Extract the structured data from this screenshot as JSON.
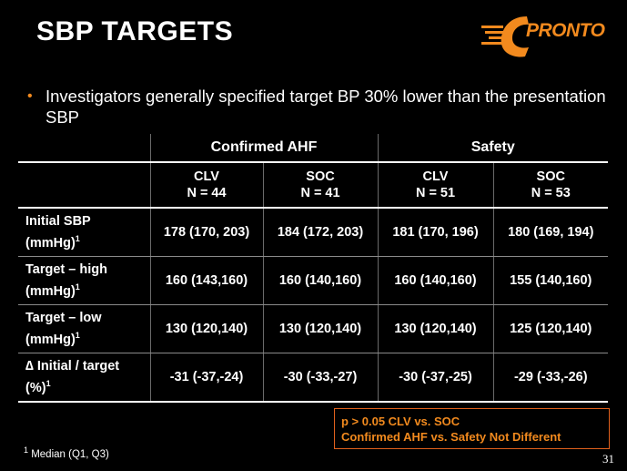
{
  "slide": {
    "title": "SBP TARGETS",
    "logo_text": "PRONTO",
    "bullet": "Investigators generally specified target BP 30% lower than the presentation SBP",
    "page_number": "31",
    "colors": {
      "accent": "#f28a1e",
      "box_border": "#e0601c",
      "background": "#000000"
    },
    "icons": {
      "bullet": "bullet-dot-icon",
      "logo": "pronto-logo-icon"
    }
  },
  "table": {
    "group_headers": [
      "Confirmed AHF",
      "Safety"
    ],
    "columns": [
      {
        "name": "CLV",
        "n": "N = 44"
      },
      {
        "name": "SOC",
        "n": "N = 41"
      },
      {
        "name": "CLV",
        "n": "N = 51"
      },
      {
        "name": "SOC",
        "n": "N = 53"
      }
    ],
    "rows": [
      {
        "label_line1": "Initial SBP",
        "label_line2": "(mmHg)",
        "sup": "1",
        "values": [
          "178 (170, 203)",
          "184 (172, 203)",
          "181 (170, 196)",
          "180 (169, 194)"
        ]
      },
      {
        "label_line1": "Target – high",
        "label_line2": "(mmHg)",
        "sup": "1",
        "values": [
          "160  (143,160)",
          "160  (140,160)",
          "160  (140,160)",
          "155  (140,160)"
        ]
      },
      {
        "label_line1": "Target – low",
        "label_line2": "(mmHg)",
        "sup": "1",
        "values": [
          "130  (120,140)",
          "130  (120,140)",
          "130  (120,140)",
          "125  (120,140)"
        ]
      },
      {
        "label_line1": "∆ Initial / target",
        "label_line2": "(%)",
        "sup": "1",
        "values": [
          "-31  (-37,-24)",
          "-30  (-33,-27)",
          "-30  (-37,-25)",
          "-29  (-33,-26)"
        ]
      }
    ]
  },
  "note": {
    "line1": "p > 0.05 CLV vs. SOC",
    "line2": "Confirmed AHF  vs. Safety Not Different"
  },
  "footnote": {
    "sup": "1",
    "text": " Median (Q1, Q3)"
  }
}
